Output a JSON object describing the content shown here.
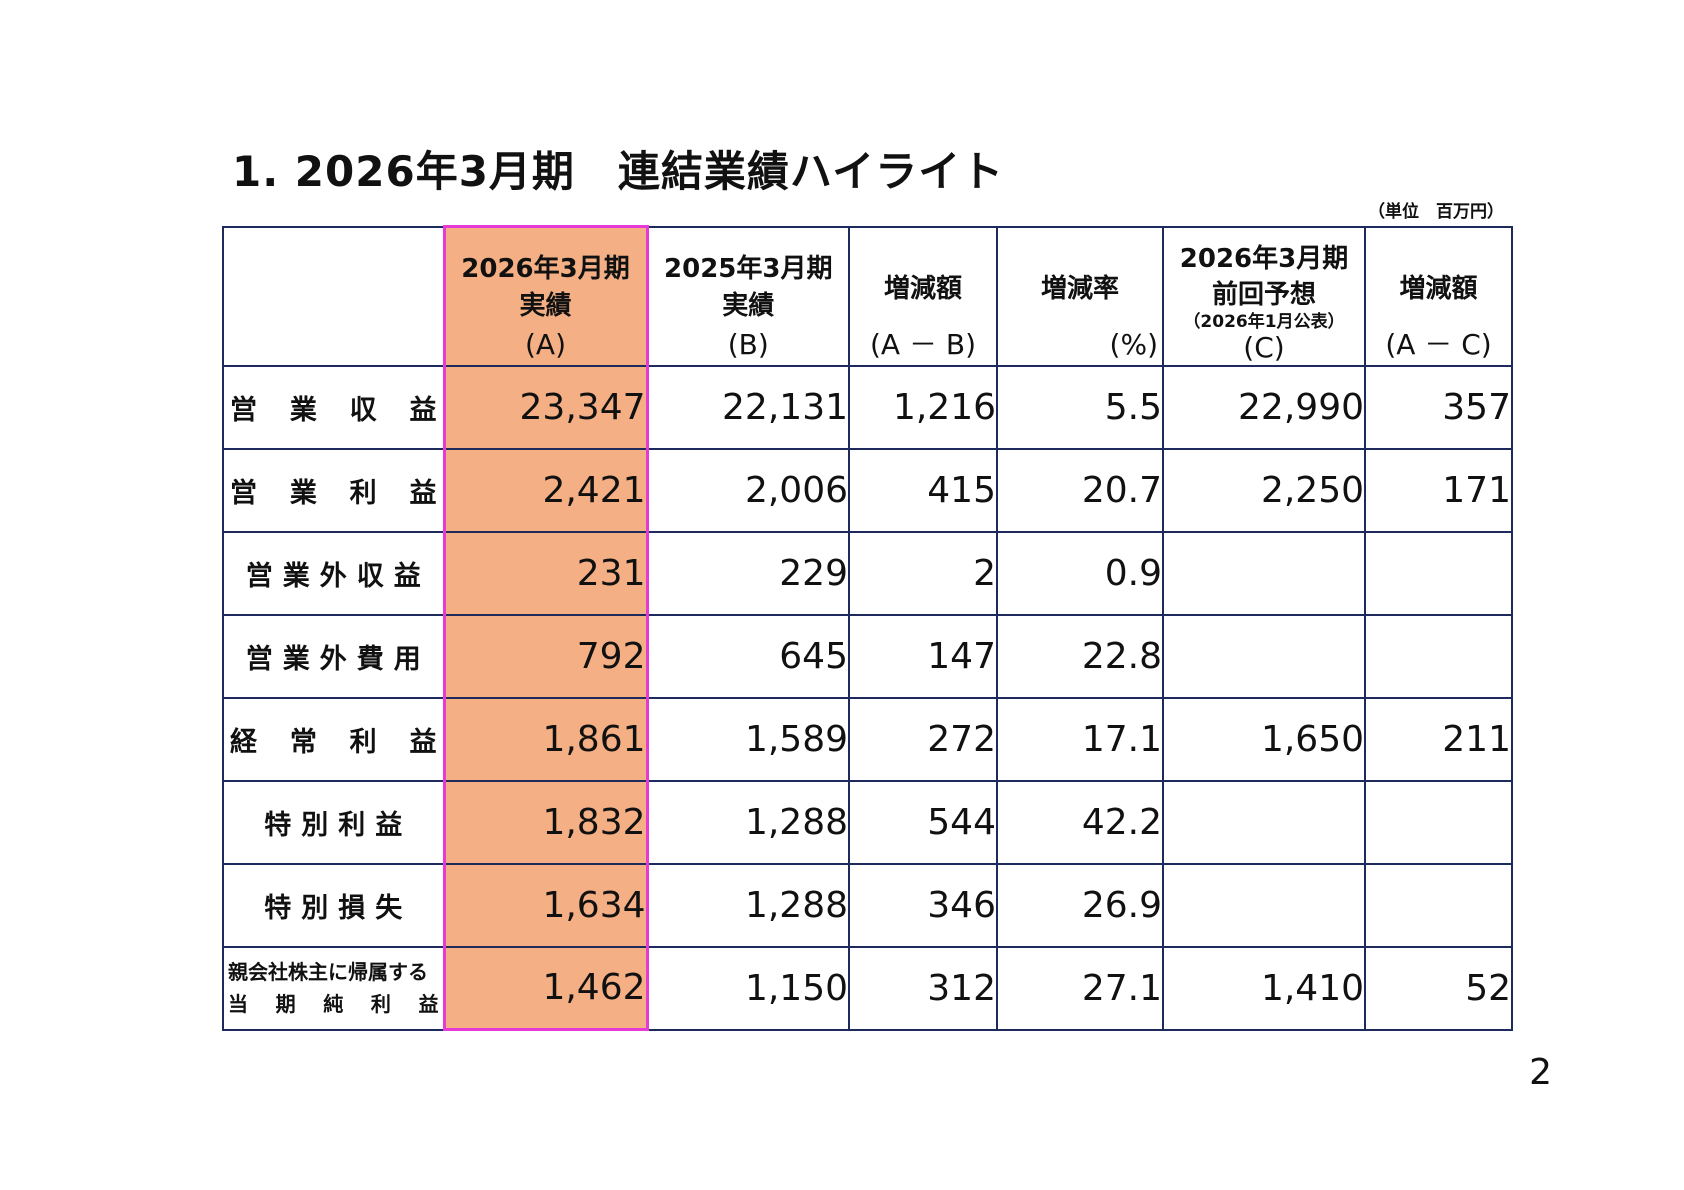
{
  "title": "1. 2026年3月期　連結業績ハイライト",
  "unit_note": "（単位　百万円）",
  "columns": [
    {
      "line1": "",
      "line2": "",
      "sub": "",
      "paren": ""
    },
    {
      "line1": "2026年3月期",
      "line2": "実績",
      "sub": "",
      "paren": "(A)"
    },
    {
      "line1": "2025年3月期",
      "line2": "実績",
      "sub": "",
      "paren": "(B)"
    },
    {
      "line1": "",
      "mid": "増減額",
      "paren": "(A － B)"
    },
    {
      "line1": "",
      "mid": "増減率",
      "paren": "(%)"
    },
    {
      "line1": "2026年3月期",
      "line2": "前回予想",
      "sub": "（2026年1月公表）",
      "paren": "(C)"
    },
    {
      "line1": "",
      "mid": "増減額",
      "paren": "(A － C)"
    }
  ],
  "rows": [
    {
      "label": "営業収益",
      "label_chars": [
        "営",
        "業",
        "収",
        "益"
      ],
      "values": [
        "23,347",
        "22,131",
        "1,216",
        "5.5",
        "22,990",
        "357"
      ]
    },
    {
      "label": "営業利益",
      "label_chars": [
        "営",
        "業",
        "利",
        "益"
      ],
      "values": [
        "2,421",
        "2,006",
        "415",
        "20.7",
        "2,250",
        "171"
      ]
    },
    {
      "label": "営業外収益",
      "values": [
        "231",
        "229",
        "2",
        "0.9",
        "",
        ""
      ]
    },
    {
      "label": "営業外費用",
      "values": [
        "792",
        "645",
        "147",
        "22.8",
        "",
        ""
      ]
    },
    {
      "label": "経常利益",
      "label_chars": [
        "経",
        "常",
        "利",
        "益"
      ],
      "values": [
        "1,861",
        "1,589",
        "272",
        "17.1",
        "1,650",
        "211"
      ]
    },
    {
      "label": "特別利益",
      "values": [
        "1,832",
        "1,288",
        "544",
        "42.2",
        "",
        ""
      ]
    },
    {
      "label": "特別損失",
      "values": [
        "1,634",
        "1,288",
        "346",
        "26.9",
        "",
        ""
      ]
    },
    {
      "label_top": "親会社株主に帰属する",
      "label_bottom_chars": [
        "当",
        "期",
        "純",
        "利",
        "益"
      ],
      "values": [
        "1,462",
        "1,150",
        "312",
        "27.1",
        "1,410",
        "52"
      ]
    }
  ],
  "page_number": "2",
  "colors": {
    "highlight_fill": "#f4b084",
    "highlight_border": "#e63ad6",
    "grid": "#1f2a5c"
  }
}
